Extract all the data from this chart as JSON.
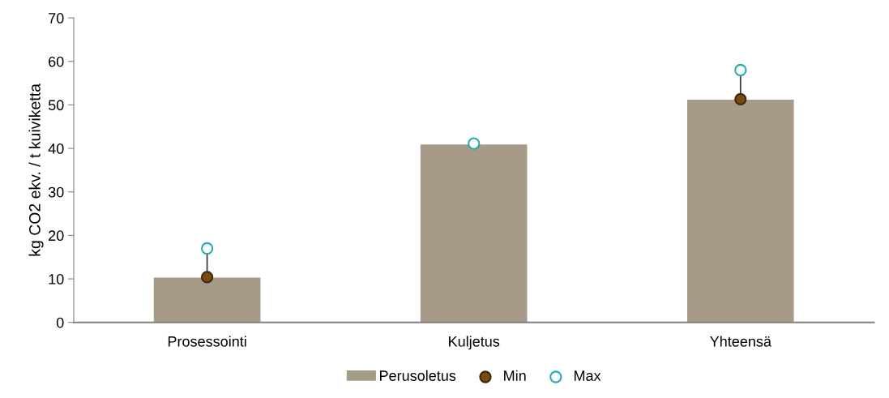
{
  "chart_data": {
    "type": "bar",
    "ylabel": "kg CO2 ekv. / t kuiviketta",
    "categories": [
      "Prosessointi",
      "Kuljetus",
      "Yhteensä"
    ],
    "series": [
      {
        "name": "Perusoletus",
        "color": "#a89a88",
        "values": [
          10.3,
          40.9,
          51.2
        ]
      },
      {
        "name": "Min",
        "type": "scatter",
        "color": "#7a4a10",
        "values": [
          10.4,
          null,
          51.3
        ]
      },
      {
        "name": "Max",
        "type": "scatter",
        "color": "#ffffff",
        "values": [
          17.0,
          41.1,
          58.0
        ]
      }
    ],
    "ylim": [
      0,
      70
    ],
    "yticks": [
      0,
      10,
      20,
      30,
      40,
      50,
      60,
      70
    ],
    "marker": "circle",
    "grid": false,
    "legend": "bottom"
  }
}
